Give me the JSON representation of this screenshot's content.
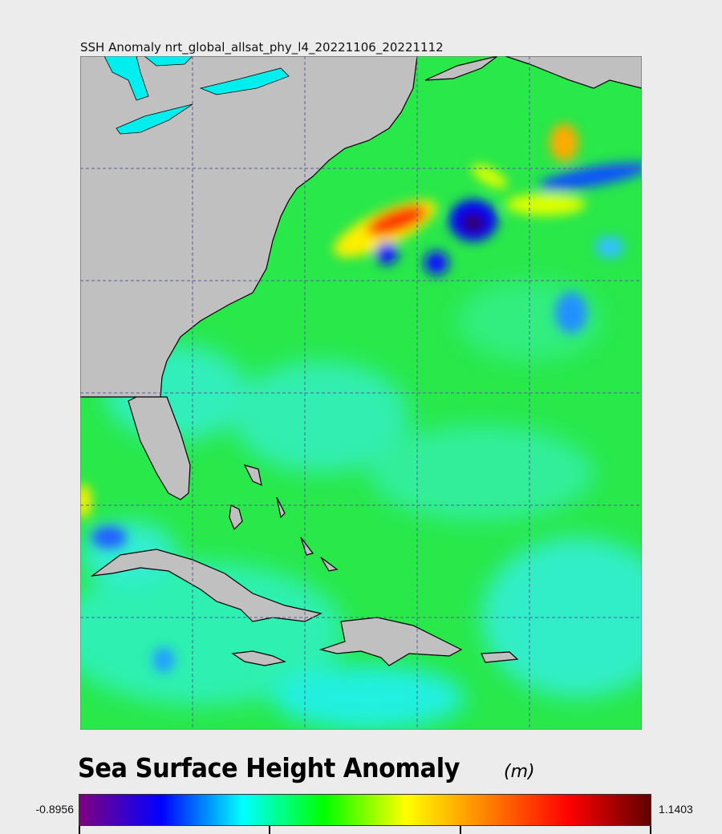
{
  "title": "SSH Anomaly nrt_global_allsat_phy_l4_20221106_20221112",
  "colorbar": {
    "label": "Sea Surface Height Anomaly",
    "unit": "(m)",
    "min": "-0.8956",
    "max": "1.1403",
    "stops": [
      "#800080",
      "#0000ff",
      "#00ffff",
      "#00ff00",
      "#ffff00",
      "#ff8000",
      "#ff0000",
      "#600000"
    ]
  },
  "colors": {
    "land": "#c0c0c0",
    "ocean_base": "#22ee44",
    "lakes": "#00eeee",
    "grid": "#5555aa"
  }
}
